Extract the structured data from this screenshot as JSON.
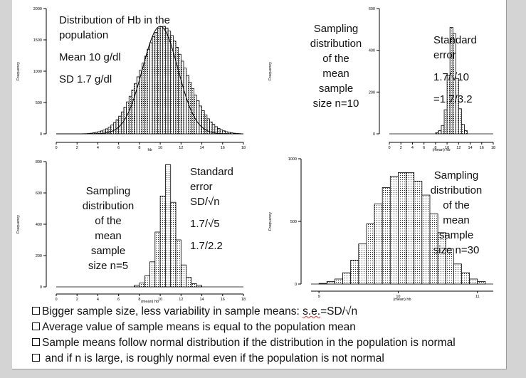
{
  "chart_data": [
    {
      "type": "bar",
      "xlabel": "hb",
      "ylabel": "Frequency",
      "xlim": [
        0,
        18
      ],
      "xticks": [
        "0",
        "2",
        "4",
        "6",
        "8",
        "10",
        "12",
        "14",
        "16",
        "18"
      ],
      "ylim": [
        0,
        2000
      ],
      "yticks": [
        "0",
        "500",
        "1000",
        "1500",
        "2000"
      ],
      "bin_width": 0.25,
      "values": [
        2,
        3,
        6,
        10,
        16,
        24,
        34,
        46,
        60,
        80,
        106,
        140,
        178,
        226,
        282,
        350,
        424,
        510,
        600,
        700,
        804,
        910,
        1016,
        1130,
        1240,
        1350,
        1454,
        1550,
        1620,
        1680,
        1710,
        1716,
        1690,
        1640,
        1570,
        1480,
        1380,
        1270,
        1160,
        1050,
        930,
        820,
        720,
        620,
        528,
        444,
        370,
        300,
        240,
        190,
        150,
        114,
        86,
        64,
        48,
        34,
        24,
        16,
        10,
        6,
        4
      ],
      "x_start": 2.5,
      "overlay": "normal curve",
      "title_lines": [
        "Distribution of Hb in the",
        "population",
        "Mean 10 g/dl",
        "SD 1.7 g/dl"
      ]
    },
    {
      "type": "bar",
      "xlabel": "(mean) hb",
      "ylabel": "Frequency",
      "xlim": [
        0,
        18
      ],
      "xticks": [
        "0",
        "2",
        "4",
        "6",
        "8",
        "10",
        "12",
        "14",
        "16",
        "18"
      ],
      "ylim": [
        0,
        600
      ],
      "yticks": [
        "0",
        "200",
        "400",
        "600"
      ],
      "bin_width": 0.5,
      "x_start": 8.0,
      "values": [
        5,
        15,
        40,
        115,
        280,
        510,
        480,
        265,
        120,
        45,
        15
      ]
    },
    {
      "type": "bar",
      "xlabel": "(mean) hb",
      "ylabel": "Frequency",
      "xlim": [
        0,
        18
      ],
      "xticks": [
        "0",
        "2",
        "4",
        "6",
        "8",
        "10",
        "12",
        "14",
        "16",
        "18"
      ],
      "ylim": [
        0,
        800
      ],
      "yticks": [
        "0",
        "200",
        "400",
        "600",
        "800"
      ],
      "bin_width": 0.5,
      "x_start": 7.5,
      "values": [
        10,
        25,
        70,
        160,
        350,
        580,
        780,
        540,
        300,
        140,
        60,
        20,
        10
      ]
    },
    {
      "type": "bar",
      "xlabel": "(mean) hb",
      "ylabel": "Frequency",
      "xlim": [
        8.9,
        11.2
      ],
      "xticks": [
        "9",
        "10",
        "11"
      ],
      "ylim": [
        0,
        1000
      ],
      "yticks": [
        "0",
        "500",
        "1000"
      ],
      "bin_width": 0.1,
      "x_start": 9.0,
      "values": [
        5,
        20,
        40,
        90,
        190,
        320,
        480,
        640,
        770,
        860,
        890,
        890,
        820,
        710,
        560,
        410,
        280,
        160,
        90,
        40,
        20
      ]
    }
  ],
  "texts": {
    "p2_left": [
      "Sampling",
      "distribution",
      "of the",
      "mean",
      "sample",
      "size n=10"
    ],
    "p2_right": [
      "Standard",
      "error",
      "1.7/√10",
      "=1.7/3.2"
    ],
    "p3_left": [
      "Sampling",
      "distribution",
      "of the",
      "mean",
      "sample",
      "size n=5"
    ],
    "p3_right": [
      "Standard",
      "error",
      "SD/√n",
      "1.7/√5",
      "1.7/2.2"
    ],
    "p4_right": [
      "Sampling",
      "distribution",
      "of the",
      "mean",
      "sample",
      "size n=30"
    ]
  },
  "bullets": [
    {
      "pre": "Bigger sample size, less variability in sample means: ",
      "spell": "s.e.",
      "post": "=SD/√n"
    },
    {
      "pre": "Average value of sample means is equal to the population mean",
      "spell": "",
      "post": ""
    },
    {
      "pre": "Sample means follow normal distribution if the distribution in the population is normal",
      "spell": "",
      "post": ""
    },
    {
      "pre": " and if n is large, is roughly normal even if the population is not normal",
      "spell": "",
      "post": ""
    }
  ]
}
